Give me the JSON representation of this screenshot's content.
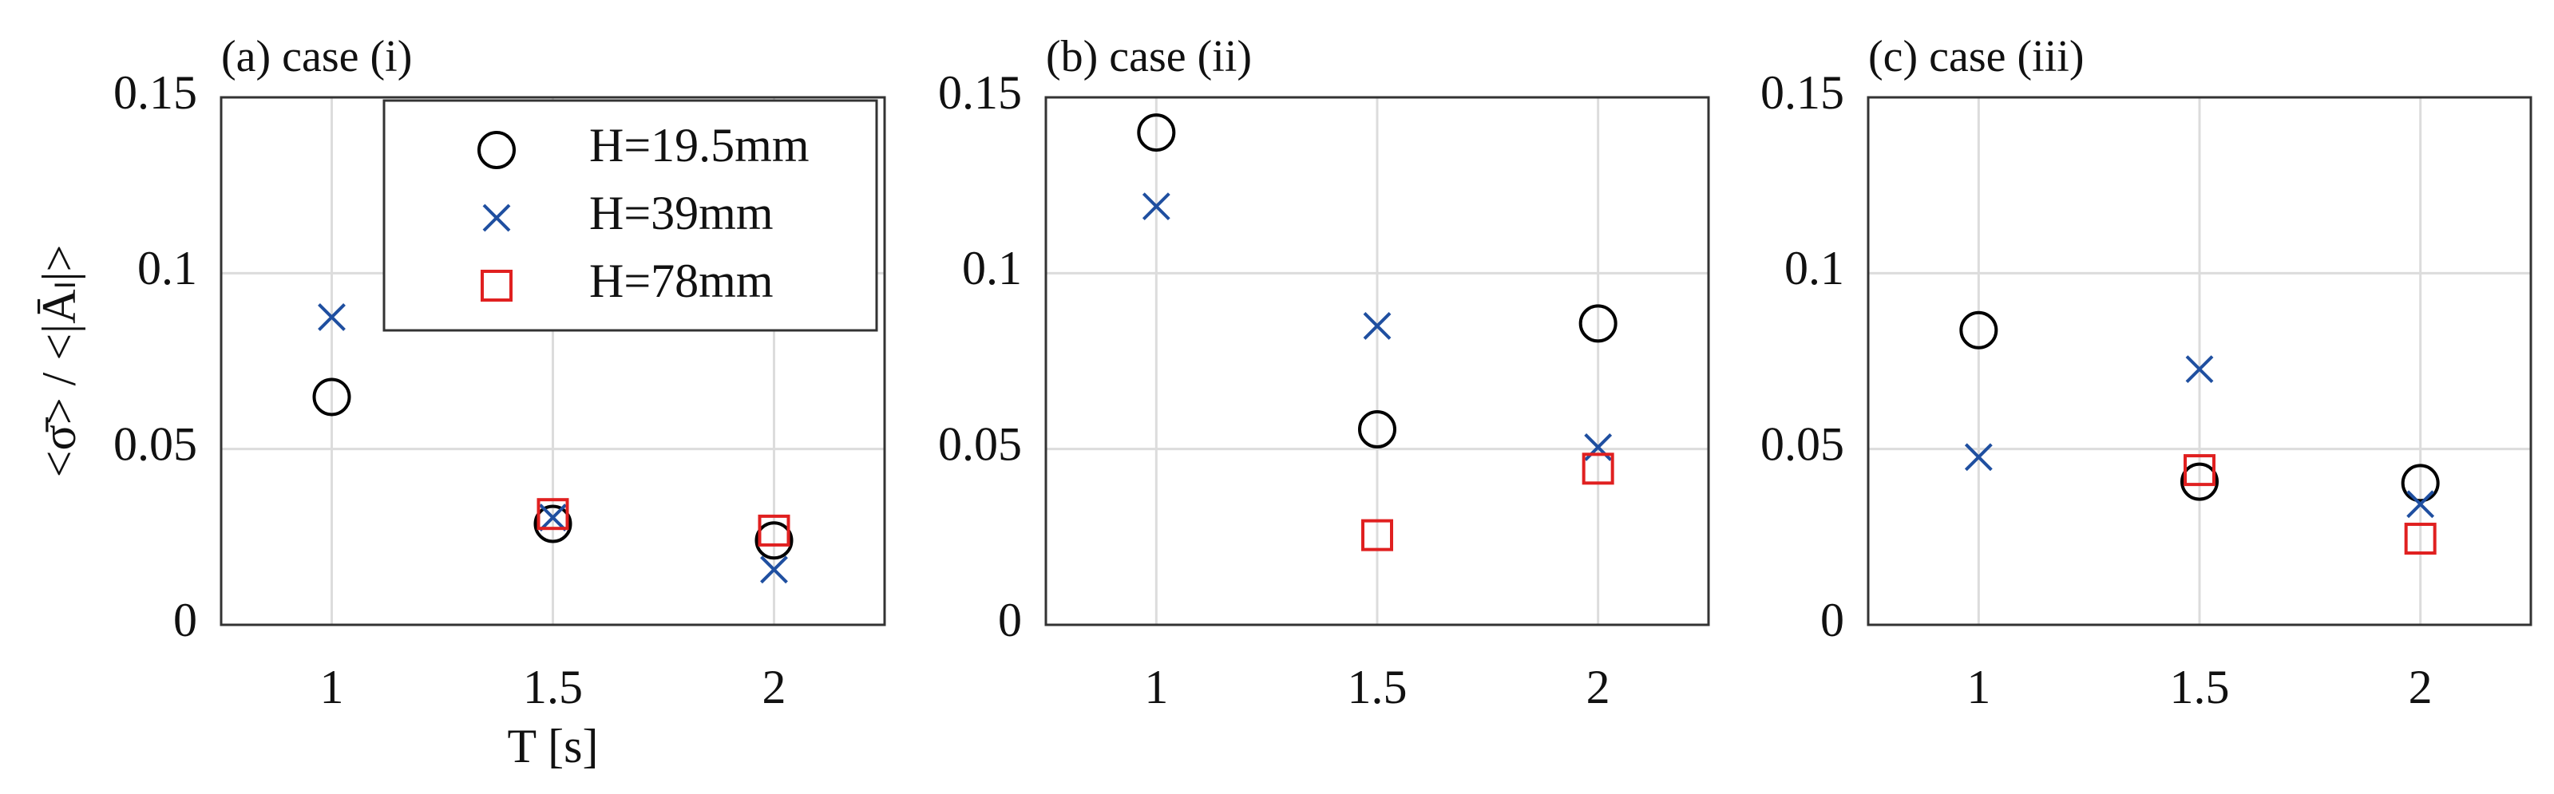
{
  "chart_data": [
    {
      "type": "scatter",
      "title": "(a) case (i)",
      "x_label": "T [s]",
      "y_label": "<σ̄> / <|Āₗ|>",
      "x": [
        1,
        1.5,
        2
      ],
      "xlim": [
        0.75,
        2.25
      ],
      "xticks": [
        1,
        1.5,
        2
      ],
      "ylim": [
        0,
        0.15
      ],
      "yticks": [
        0,
        0.05,
        0.1,
        0.15
      ],
      "grid": true,
      "legend": "upper right",
      "series": [
        {
          "name": "H=19.5mm",
          "marker": "circle",
          "color": "#000000",
          "values": [
            0.0648,
            0.0287,
            0.024
          ]
        },
        {
          "name": "H=39mm",
          "marker": "cross",
          "color": "#1f4fa0",
          "values": [
            0.0875,
            0.0305,
            0.0157
          ]
        },
        {
          "name": "H=78mm",
          "marker": "square",
          "color": "#e02020",
          "values": [
            null,
            0.0315,
            0.0268
          ]
        }
      ]
    },
    {
      "type": "scatter",
      "title": "(b) case (ii)",
      "x": [
        1,
        1.5,
        2
      ],
      "xlim": [
        0.75,
        2.25
      ],
      "xticks": [
        1,
        1.5,
        2
      ],
      "ylim": [
        0,
        0.15
      ],
      "yticks": [
        0,
        0.05,
        0.1,
        0.15
      ],
      "grid": true,
      "series": [
        {
          "marker": "circle",
          "color": "#000000",
          "values": [
            0.14,
            0.0556,
            0.0857
          ]
        },
        {
          "marker": "cross",
          "color": "#1f4fa0",
          "values": [
            0.119,
            0.085,
            0.0505
          ]
        },
        {
          "marker": "square",
          "color": "#e02020",
          "values": [
            null,
            0.0255,
            0.0444
          ]
        }
      ]
    },
    {
      "type": "scatter",
      "title": "(c) case (iii)",
      "x": [
        1,
        1.5,
        2
      ],
      "xlim": [
        0.75,
        2.25
      ],
      "xticks": [
        1,
        1.5,
        2
      ],
      "ylim": [
        0,
        0.15
      ],
      "yticks": [
        0,
        0.05,
        0.1,
        0.15
      ],
      "grid": true,
      "series": [
        {
          "marker": "circle",
          "color": "#000000",
          "values": [
            0.0838,
            0.0407,
            0.0403
          ]
        },
        {
          "marker": "cross",
          "color": "#1f4fa0",
          "values": [
            0.0477,
            0.0727,
            0.0343
          ]
        },
        {
          "marker": "square",
          "color": "#e02020",
          "values": [
            null,
            0.044,
            0.0245
          ]
        }
      ]
    }
  ]
}
